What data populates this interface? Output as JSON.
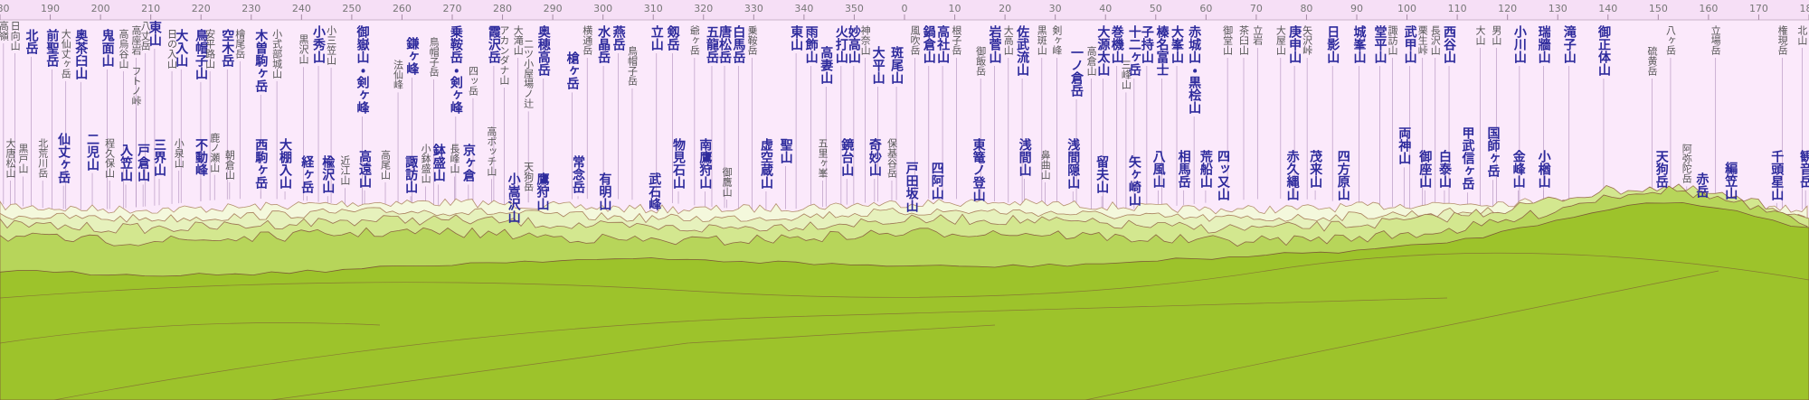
{
  "scale": [
    180,
    190,
    200,
    210,
    220,
    230,
    240,
    250,
    260,
    270,
    280,
    290,
    300,
    310,
    320,
    330,
    340,
    350,
    0,
    10,
    20,
    30,
    40,
    50,
    60,
    70,
    80,
    90,
    100,
    110,
    120,
    130,
    140,
    150,
    160,
    170,
    180
  ],
  "peaks": [
    "高嶺",
    "日向山",
    "北岳",
    "前聖岳",
    "大仙丈ヶ岳",
    "奥茶臼山",
    "鬼面山",
    "高烏谷山",
    "高座岩",
    "フトノ峠",
    "八丈岳",
    "東山",
    "日の入山",
    "大入山",
    "鳥帽子山",
    "安平路山",
    "空木岳",
    "檜尾岳",
    "木曽駒ヶ岳",
    "小式部城山",
    "黒沢山",
    "小秀山",
    "小三笠山",
    "御嶽山・剣ヶ峰",
    "法仙峰",
    "鎌ヶ峰",
    "鳥帽子岳",
    "乗鞍岳・剣ヶ峰",
    "四ッ岳",
    "霞沢岳",
    "アカンダナ山",
    "大滝山",
    "二ツ小屋場ノ辻",
    "奥穂高岳",
    "槍ヶ岳",
    "横通岳",
    "水晶岳",
    "燕岳",
    "鳥帽子岳",
    "立山",
    "剱岳",
    "爺ヶ岳",
    "五龍岳",
    "唐松岳",
    "白馬岳",
    "乗鞍岳",
    "東山",
    "雨飾山",
    "高妻山",
    "火打山",
    "妙高山",
    "神奈山",
    "大平山",
    "斑尾山",
    "風吹岳",
    "鍋倉山",
    "高社山",
    "根子岳",
    "御飯岳",
    "岩菅山",
    "大高山",
    "佐武流山",
    "黒斑山",
    "剣ヶ峰",
    "一ノ倉岳",
    "高倉山",
    "大源太山",
    "巻機山",
    "三峰山",
    "十二ヶ岳",
    "子持山",
    "榛名富士",
    "大峯山",
    "赤城山・黒桧山",
    "御堂山",
    "茶臼山",
    "立岩",
    "大屋山",
    "庚申山",
    "矢沢峠",
    "日影山",
    "城峯山",
    "堂平山",
    "諏訪山",
    "武甲山",
    "栗生峠",
    "長沢山",
    "西谷山",
    "大山",
    "男山",
    "小川山",
    "瑞牆山",
    "滝子山",
    "御正体山",
    "硫黄岳",
    "八ヶ岳",
    "立場岳",
    "権現岳",
    "北山",
    "大唐松山",
    "黒戸山",
    "北荒川岳",
    "仙丈ヶ岳",
    "二児山",
    "程久保山",
    "入笠山",
    "戸倉山",
    "三界山",
    "小泉山",
    "不動峰",
    "鹿ノ瀬山",
    "朝倉山",
    "西駒ヶ岳",
    "大棚入山",
    "経ヶ岳",
    "楡沢山",
    "近江山",
    "高遠山",
    "高尾山",
    "諏訪山",
    "小鉢盛山",
    "鉢盛山",
    "長峰山",
    "京ヶ倉",
    "高ボッチ山",
    "小嵩沢山",
    "天狗岳",
    "鷹狩山",
    "常念岳",
    "有明山",
    "武石峰",
    "物見石山",
    "南鷹狩山",
    "御鷹山",
    "虚空蔵山",
    "聖山",
    "五里ヶ峯",
    "鏡台山",
    "奇妙山",
    "保基谷岳",
    "戸田坂山",
    "四阿山",
    "東篭ノ登山",
    "浅間山",
    "鼻曲山",
    "浅間隠山",
    "留夫山",
    "矢ヶ崎山",
    "八風山",
    "相馬岳",
    "荒船山",
    "四ッ又山",
    "赤久縄山",
    "茂来山",
    "四方原山",
    "両神山",
    "御座山",
    "白泰山",
    "甲武信ヶ岳",
    "国師ヶ岳",
    "金峰山",
    "小楢山",
    "天狗岳",
    "阿弥陀岳",
    "赤岳",
    "編笠山",
    "千頭星山",
    "観音岳"
  ]
}
